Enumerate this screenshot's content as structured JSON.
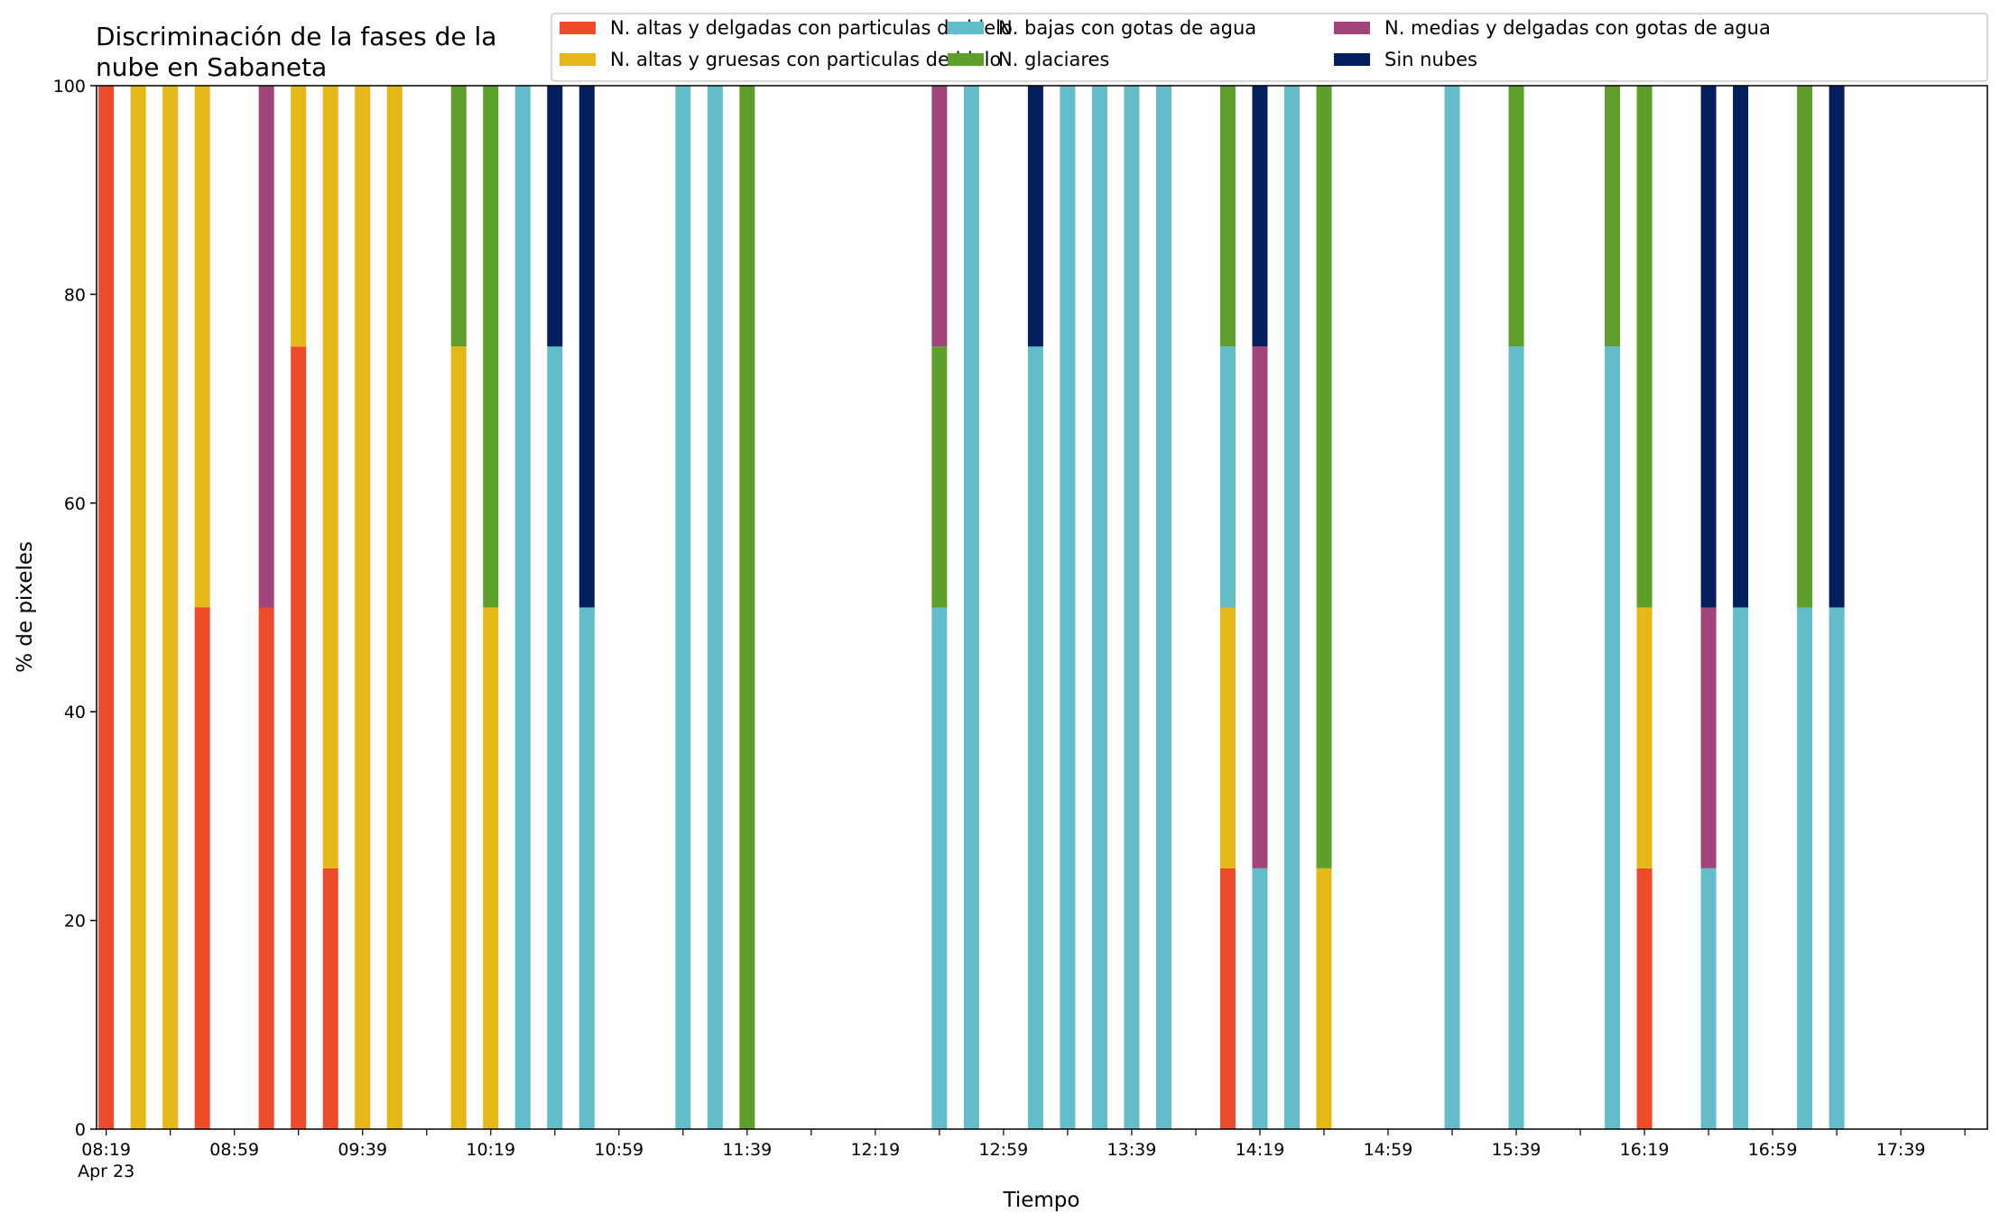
{
  "chart_data": {
    "type": "bar",
    "stacked": true,
    "title_lines": [
      "Discriminación de la fases de la",
      "nube en Sabaneta"
    ],
    "xlabel": "Tiempo",
    "ylabel": "% de pixeles",
    "ylim": [
      0,
      100
    ],
    "y_ticks": [
      "0",
      "20",
      "40",
      "60",
      "80",
      "100"
    ],
    "x_ticks": [
      {
        "label": "08:19",
        "sub": "Apr 23"
      },
      {
        "label": "08:59"
      },
      {
        "label": "09:39"
      },
      {
        "label": "10:19"
      },
      {
        "label": "10:59"
      },
      {
        "label": "11:39"
      },
      {
        "label": "12:19"
      },
      {
        "label": "12:59"
      },
      {
        "label": "13:39"
      },
      {
        "label": "14:19"
      },
      {
        "label": "14:59"
      },
      {
        "label": "15:39"
      },
      {
        "label": "16:19"
      },
      {
        "label": "16:59"
      },
      {
        "label": "17:39"
      }
    ],
    "x_range_minutes_from_0819": [
      -3,
      587
    ],
    "grid": false,
    "legend_position": "top-right",
    "series": [
      {
        "name": "N. altas y delgadas con particulas de hielo",
        "color": "#ee4b2b"
      },
      {
        "name": "N. altas y gruesas con particulas de hielo",
        "color": "#e6b817"
      },
      {
        "name": "N. bajas con gotas de agua",
        "color": "#63bcc9"
      },
      {
        "name": "N. glaciares",
        "color": "#5e9e2b"
      },
      {
        "name": "N. medias y delgadas con gotas de agua",
        "color": "#a2447a"
      },
      {
        "name": "Sin nubes",
        "color": "#041f5e"
      }
    ],
    "bars": [
      {
        "time": "08:19",
        "values": [
          100,
          0,
          0,
          0,
          0,
          0
        ]
      },
      {
        "time": "08:29",
        "values": [
          0,
          100,
          0,
          0,
          0,
          0
        ]
      },
      {
        "time": "08:39",
        "values": [
          0,
          100,
          0,
          0,
          0,
          0
        ]
      },
      {
        "time": "08:49",
        "values": [
          50,
          50,
          0,
          0,
          0,
          0
        ]
      },
      {
        "time": "09:09",
        "values": [
          50,
          0,
          0,
          0,
          50,
          0
        ]
      },
      {
        "time": "09:19",
        "values": [
          75,
          25,
          0,
          0,
          0,
          0
        ]
      },
      {
        "time": "09:29",
        "values": [
          25,
          75,
          0,
          0,
          0,
          0
        ]
      },
      {
        "time": "09:39",
        "values": [
          0,
          100,
          0,
          0,
          0,
          0
        ]
      },
      {
        "time": "09:49",
        "values": [
          0,
          100,
          0,
          0,
          0,
          0
        ]
      },
      {
        "time": "10:09",
        "values": [
          0,
          75,
          0,
          25,
          0,
          0
        ]
      },
      {
        "time": "10:19",
        "values": [
          0,
          50,
          0,
          50,
          0,
          0
        ]
      },
      {
        "time": "10:29",
        "values": [
          0,
          0,
          100,
          0,
          0,
          0
        ]
      },
      {
        "time": "10:39",
        "values": [
          0,
          0,
          75,
          0,
          0,
          25
        ]
      },
      {
        "time": "10:49",
        "values": [
          0,
          0,
          50,
          0,
          0,
          50
        ]
      },
      {
        "time": "11:19",
        "values": [
          0,
          0,
          100,
          0,
          0,
          0
        ]
      },
      {
        "time": "11:29",
        "values": [
          0,
          0,
          100,
          0,
          0,
          0
        ]
      },
      {
        "time": "11:39",
        "values": [
          0,
          0,
          0,
          100,
          0,
          0
        ]
      },
      {
        "time": "12:39",
        "values": [
          0,
          0,
          50,
          25,
          25,
          0
        ]
      },
      {
        "time": "12:49",
        "values": [
          0,
          0,
          100,
          0,
          0,
          0
        ]
      },
      {
        "time": "13:09",
        "values": [
          0,
          0,
          75,
          0,
          0,
          25
        ]
      },
      {
        "time": "13:19",
        "values": [
          0,
          0,
          100,
          0,
          0,
          0
        ]
      },
      {
        "time": "13:29",
        "values": [
          0,
          0,
          100,
          0,
          0,
          0
        ]
      },
      {
        "time": "13:39",
        "values": [
          0,
          0,
          100,
          0,
          0,
          0
        ]
      },
      {
        "time": "13:49",
        "values": [
          0,
          0,
          100,
          0,
          0,
          0
        ]
      },
      {
        "time": "14:09",
        "values": [
          25,
          25,
          25,
          25,
          0,
          0
        ]
      },
      {
        "time": "14:19",
        "values": [
          0,
          0,
          25,
          0,
          50,
          25
        ]
      },
      {
        "time": "14:29",
        "values": [
          0,
          0,
          100,
          0,
          0,
          0
        ]
      },
      {
        "time": "14:39",
        "values": [
          0,
          25,
          0,
          75,
          0,
          0
        ]
      },
      {
        "time": "15:19",
        "values": [
          0,
          0,
          100,
          0,
          0,
          0
        ]
      },
      {
        "time": "15:39",
        "values": [
          0,
          0,
          75,
          25,
          0,
          0
        ]
      },
      {
        "time": "16:09",
        "values": [
          0,
          0,
          75,
          25,
          0,
          0
        ]
      },
      {
        "time": "16:19",
        "values": [
          25,
          25,
          0,
          50,
          0,
          0
        ]
      },
      {
        "time": "16:39",
        "values": [
          0,
          0,
          25,
          0,
          25,
          50
        ]
      },
      {
        "time": "16:49",
        "values": [
          0,
          0,
          50,
          0,
          0,
          50
        ]
      },
      {
        "time": "17:09",
        "values": [
          0,
          0,
          50,
          50,
          0,
          0
        ]
      },
      {
        "time": "17:19",
        "values": [
          0,
          0,
          50,
          0,
          0,
          50
        ]
      }
    ]
  }
}
